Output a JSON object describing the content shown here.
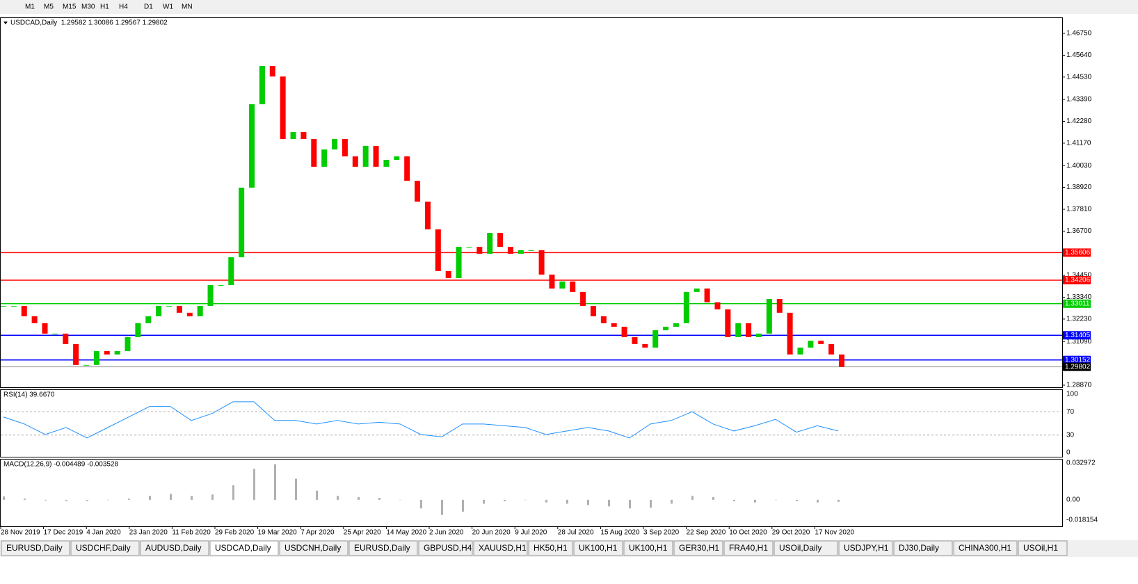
{
  "toolbar": {
    "timeframes": [
      "M1",
      "M5",
      "M15",
      "M30",
      "H1",
      "H4",
      "D1",
      "W1",
      "MN"
    ]
  },
  "chart": {
    "header": "USDCAD,Daily  1.29582 1.30086 1.29567 1.29802",
    "ylim": [
      1.2887,
      1.4675
    ],
    "yticks": [
      {
        "value": 1.4675,
        "label": "1.46750"
      },
      {
        "value": 1.4564,
        "label": "1.45640"
      },
      {
        "value": 1.4453,
        "label": "1.44530"
      },
      {
        "value": 1.4339,
        "label": "1.43390"
      },
      {
        "value": 1.4228,
        "label": "1.42280"
      },
      {
        "value": 1.4117,
        "label": "1.41170"
      },
      {
        "value": 1.4003,
        "label": "1.40030"
      },
      {
        "value": 1.3892,
        "label": "1.38920"
      },
      {
        "value": 1.3781,
        "label": "1.37810"
      },
      {
        "value": 1.367,
        "label": "1.36700"
      },
      {
        "value": 1.3445,
        "label": "1.34450"
      },
      {
        "value": 1.3334,
        "label": "1.33340"
      },
      {
        "value": 1.3223,
        "label": "1.32230"
      },
      {
        "value": 1.3109,
        "label": "1.31090"
      },
      {
        "value": 1.2887,
        "label": "1.28870"
      }
    ],
    "levels": [
      {
        "value": 1.35606,
        "label": "1.35606",
        "color": "#ff0000"
      },
      {
        "value": 1.34206,
        "label": "1.34206",
        "color": "#ff0000"
      },
      {
        "value": 1.33011,
        "label": "1.33011",
        "color": "#00cc00"
      },
      {
        "value": 1.31405,
        "label": "1.31405",
        "color": "#0000ff"
      },
      {
        "value": 1.30152,
        "label": "1.30152",
        "color": "#0000ff"
      }
    ],
    "current": {
      "value": 1.29802,
      "label": "1.29802"
    },
    "closes": [
      1.329,
      1.329,
      1.3237,
      1.3202,
      1.3149,
      1.3149,
      1.3096,
      1.299,
      1.299,
      1.306,
      1.3043,
      1.306,
      1.3131,
      1.3202,
      1.3237,
      1.329,
      1.329,
      1.3255,
      1.3237,
      1.329,
      1.3396,
      1.3396,
      1.3537,
      1.3891,
      1.4315,
      1.4509,
      1.4456,
      1.4138,
      1.4173,
      1.4138,
      1.3997,
      1.4085,
      1.4138,
      1.405,
      1.3997,
      1.4103,
      1.3997,
      1.4032,
      1.405,
      1.3926,
      1.382,
      1.3679,
      1.3467,
      1.3431,
      1.359,
      1.359,
      1.3555,
      1.3661,
      1.359,
      1.3555,
      1.3573,
      1.3573,
      1.3449,
      1.3378,
      1.3414,
      1.3361,
      1.329,
      1.3237,
      1.3202,
      1.3184,
      1.3131,
      1.3096,
      1.3078,
      1.3166,
      1.3184,
      1.3202,
      1.3361,
      1.3378,
      1.3308,
      1.3272,
      1.3131,
      1.3202,
      1.3131,
      1.3149,
      1.3325,
      1.3255,
      1.3043,
      1.3078,
      1.3113,
      1.3096,
      1.3043,
      1.298
    ],
    "up_color": "#00cc00",
    "down_color": "#ff0000",
    "dates": [
      "28 Nov 2019",
      "17 Dec 2019",
      "4 Jan 2020",
      "23 Jan 2020",
      "11 Feb 2020",
      "29 Feb 2020",
      "19 Mar 2020",
      "7 Apr 2020",
      "25 Apr 2020",
      "14 May 2020",
      "2 Jun 2020",
      "20 Jun 2020",
      "9 Jul 2020",
      "28 Jul 2020",
      "15 Aug 2020",
      "3 Sep 2020",
      "22 Sep 2020",
      "10 Oct 2020",
      "29 Oct 2020",
      "17 Nov 2020"
    ]
  },
  "rsi": {
    "header": "RSI(14) 39.6670",
    "ylim": [
      0,
      100
    ],
    "yticks": [
      0,
      30,
      70,
      100
    ],
    "levels": [
      30,
      70
    ],
    "color": "#1e90ff",
    "values": [
      61,
      49,
      31,
      43,
      25,
      43,
      61,
      79,
      79,
      55,
      67,
      87,
      87,
      55,
      55,
      49,
      55,
      49,
      52,
      49,
      31,
      27,
      49,
      49,
      46,
      43,
      31,
      37,
      43,
      37,
      25,
      49,
      55,
      70,
      49,
      37,
      46,
      57,
      35,
      46,
      37
    ]
  },
  "macd": {
    "header": "MACD(12,26,9) -0.004489 -0.003528",
    "ylim": [
      -0.018154,
      0.032972
    ],
    "yticks": [
      0.032972,
      {
        "value": 0,
        "label": "0.00"
      },
      -0.018154
    ],
    "color": "#b0b0b0",
    "values": [
      0.003,
      0.001,
      -0.0006,
      -0.001,
      -0.001,
      0,
      0.001,
      0.0035,
      0.0053,
      0.0035,
      0.0047,
      0.013,
      0.0277,
      0.0318,
      0.0189,
      0.0082,
      0.0035,
      0.0024,
      0.0018,
      0,
      -0.0077,
      -0.0136,
      -0.0106,
      -0.0035,
      -0.0012,
      0,
      -0.0024,
      -0.0035,
      -0.0047,
      -0.0059,
      -0.0077,
      -0.0071,
      -0.0035,
      0.0035,
      0.0024,
      -0.0012,
      -0.0024,
      0,
      -0.0012,
      -0.0024,
      -0.0018
    ]
  },
  "tabs": {
    "items": [
      "EURUSD,Daily",
      "USDCHF,Daily",
      "AUDUSD,Daily",
      "USDCAD,Daily",
      "USDCNH,Daily",
      "EURUSD,Daily",
      "GBPUSD,H4",
      "XAUUSD,H1",
      "HK50,H1",
      "UK100,H1",
      "UK100,H1",
      "GER30,H1",
      "FRA40,H1",
      "USOil,Daily",
      "USDJPY,H1",
      "DJ30,Daily",
      "CHINA300,H1",
      "USOil,H1"
    ],
    "active": 3
  }
}
